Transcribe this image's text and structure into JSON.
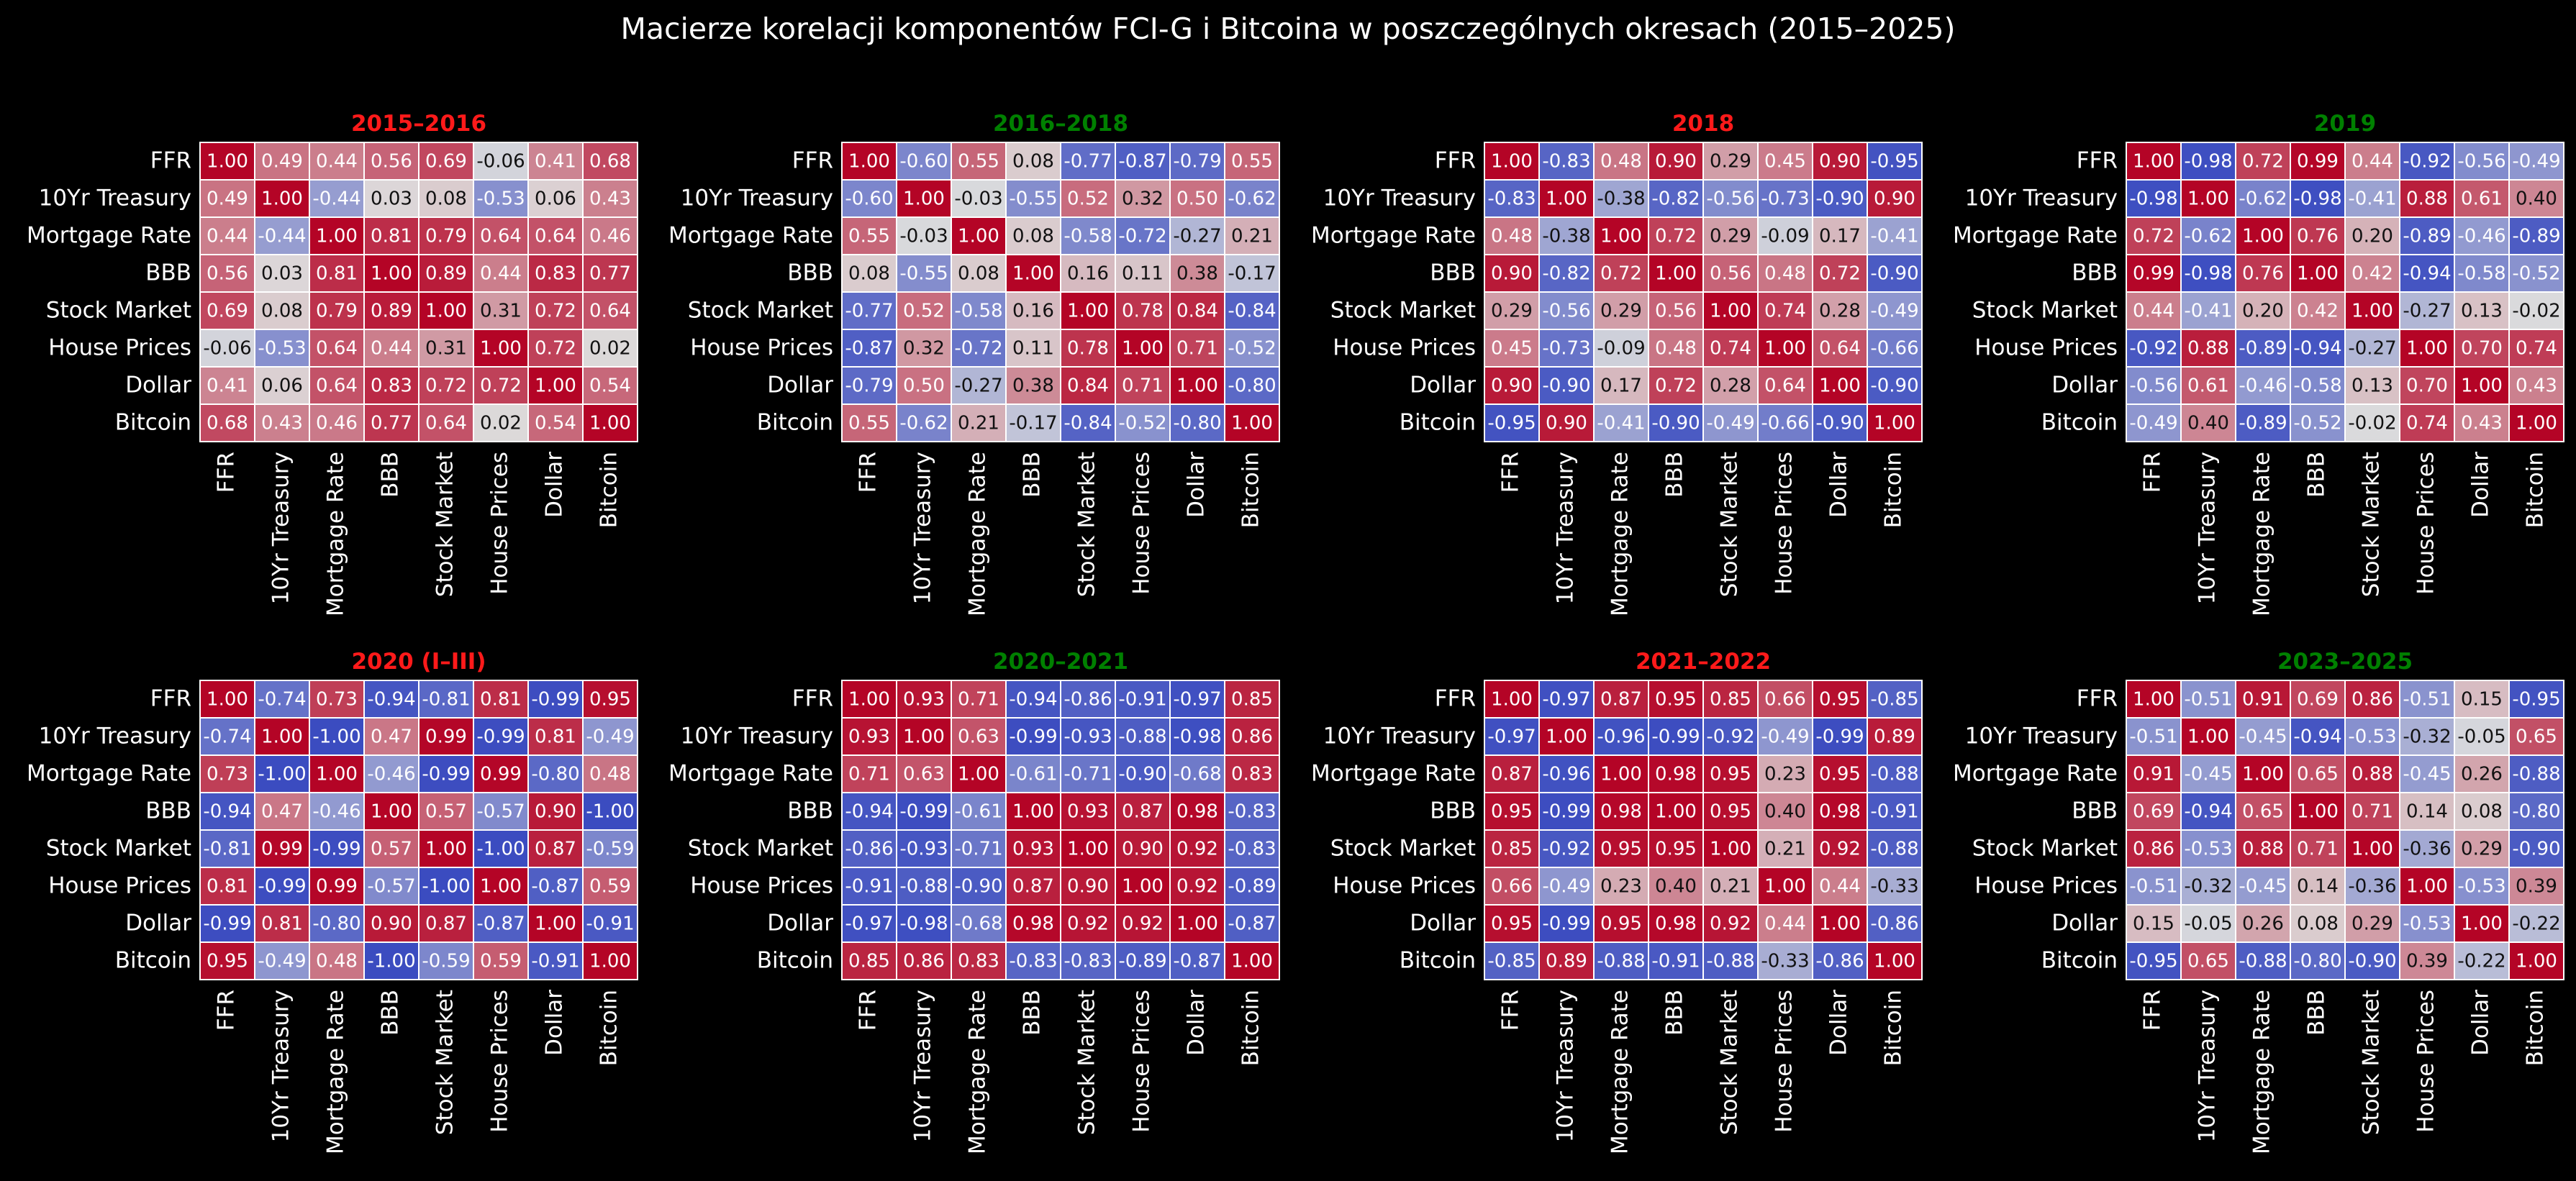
{
  "page": {
    "suptitle": "Macierze korelacji komponentów FCI-G i Bitcoina w poszczególnych okresach (2015–2025)"
  },
  "colors": {
    "background": "#000000",
    "title_red": "#ff1a1a",
    "title_green": "#008000",
    "cmap_low": "#3b4cc0",
    "cmap_mid": "#dddddd",
    "cmap_high": "#b40426",
    "cell_border": "#ffffff"
  },
  "variables": [
    "FFR",
    "10Yr Treasury",
    "Mortgage Rate",
    "BBB",
    "Stock Market",
    "House Prices",
    "Dollar",
    "Bitcoin"
  ],
  "chart_data": [
    {
      "type": "heatmap",
      "title": "2015–2016",
      "title_color": "red",
      "vmin": -1,
      "vmax": 1,
      "colormap": "coolwarm",
      "matrix": [
        [
          "1.00",
          "0.49",
          "0.44",
          "0.56",
          "0.69",
          "-0.06",
          "0.41",
          "0.68"
        ],
        [
          "0.49",
          "1.00",
          "-0.44",
          "0.03",
          "0.08",
          "-0.53",
          "0.06",
          "0.43"
        ],
        [
          "0.44",
          "-0.44",
          "1.00",
          "0.81",
          "0.79",
          "0.64",
          "0.64",
          "0.46"
        ],
        [
          "0.56",
          "0.03",
          "0.81",
          "1.00",
          "0.89",
          "0.44",
          "0.83",
          "0.77"
        ],
        [
          "0.69",
          "0.08",
          "0.79",
          "0.89",
          "1.00",
          "0.31",
          "0.72",
          "0.64"
        ],
        [
          "-0.06",
          "-0.53",
          "0.64",
          "0.44",
          "0.31",
          "1.00",
          "0.72",
          "0.02"
        ],
        [
          "0.41",
          "0.06",
          "0.64",
          "0.83",
          "0.72",
          "0.72",
          "1.00",
          "0.54"
        ],
        [
          "0.68",
          "0.43",
          "0.46",
          "0.77",
          "0.64",
          "0.02",
          "0.54",
          "1.00"
        ]
      ]
    },
    {
      "type": "heatmap",
      "title": "2016–2018",
      "title_color": "green",
      "vmin": -1,
      "vmax": 1,
      "colormap": "coolwarm",
      "matrix": [
        [
          "1.00",
          "-0.60",
          "0.55",
          "0.08",
          "-0.77",
          "-0.87",
          "-0.79",
          "0.55"
        ],
        [
          "-0.60",
          "1.00",
          "-0.03",
          "-0.55",
          "0.52",
          "0.32",
          "0.50",
          "-0.62"
        ],
        [
          "0.55",
          "-0.03",
          "1.00",
          "0.08",
          "-0.58",
          "-0.72",
          "-0.27",
          "0.21"
        ],
        [
          "0.08",
          "-0.55",
          "0.08",
          "1.00",
          "0.16",
          "0.11",
          "0.38",
          "-0.17"
        ],
        [
          "-0.77",
          "0.52",
          "-0.58",
          "0.16",
          "1.00",
          "0.78",
          "0.84",
          "-0.84"
        ],
        [
          "-0.87",
          "0.32",
          "-0.72",
          "0.11",
          "0.78",
          "1.00",
          "0.71",
          "-0.52"
        ],
        [
          "-0.79",
          "0.50",
          "-0.27",
          "0.38",
          "0.84",
          "0.71",
          "1.00",
          "-0.80"
        ],
        [
          "0.55",
          "-0.62",
          "0.21",
          "-0.17",
          "-0.84",
          "-0.52",
          "-0.80",
          "1.00"
        ]
      ]
    },
    {
      "type": "heatmap",
      "title": "2018",
      "title_color": "red",
      "vmin": -1,
      "vmax": 1,
      "colormap": "coolwarm",
      "matrix": [
        [
          "1.00",
          "-0.83",
          "0.48",
          "0.90",
          "0.29",
          "0.45",
          "0.90",
          "-0.95"
        ],
        [
          "-0.83",
          "1.00",
          "-0.38",
          "-0.82",
          "-0.56",
          "-0.73",
          "-0.90",
          "0.90"
        ],
        [
          "0.48",
          "-0.38",
          "1.00",
          "0.72",
          "0.29",
          "-0.09",
          "0.17",
          "-0.41"
        ],
        [
          "0.90",
          "-0.82",
          "0.72",
          "1.00",
          "0.56",
          "0.48",
          "0.72",
          "-0.90"
        ],
        [
          "0.29",
          "-0.56",
          "0.29",
          "0.56",
          "1.00",
          "0.74",
          "0.28",
          "-0.49"
        ],
        [
          "0.45",
          "-0.73",
          "-0.09",
          "0.48",
          "0.74",
          "1.00",
          "0.64",
          "-0.66"
        ],
        [
          "0.90",
          "-0.90",
          "0.17",
          "0.72",
          "0.28",
          "0.64",
          "1.00",
          "-0.90"
        ],
        [
          "-0.95",
          "0.90",
          "-0.41",
          "-0.90",
          "-0.49",
          "-0.66",
          "-0.90",
          "1.00"
        ]
      ]
    },
    {
      "type": "heatmap",
      "title": "2019",
      "title_color": "green",
      "vmin": -1,
      "vmax": 1,
      "colormap": "coolwarm",
      "matrix": [
        [
          "1.00",
          "-0.98",
          "0.72",
          "0.99",
          "0.44",
          "-0.92",
          "-0.56",
          "-0.49"
        ],
        [
          "-0.98",
          "1.00",
          "-0.62",
          "-0.98",
          "-0.41",
          "0.88",
          "0.61",
          "0.40"
        ],
        [
          "0.72",
          "-0.62",
          "1.00",
          "0.76",
          "0.20",
          "-0.89",
          "-0.46",
          "-0.89"
        ],
        [
          "0.99",
          "-0.98",
          "0.76",
          "1.00",
          "0.42",
          "-0.94",
          "-0.58",
          "-0.52"
        ],
        [
          "0.44",
          "-0.41",
          "0.20",
          "0.42",
          "1.00",
          "-0.27",
          "0.13",
          "-0.02"
        ],
        [
          "-0.92",
          "0.88",
          "-0.89",
          "-0.94",
          "-0.27",
          "1.00",
          "0.70",
          "0.74"
        ],
        [
          "-0.56",
          "0.61",
          "-0.46",
          "-0.58",
          "0.13",
          "0.70",
          "1.00",
          "0.43"
        ],
        [
          "-0.49",
          "0.40",
          "-0.89",
          "-0.52",
          "-0.02",
          "0.74",
          "0.43",
          "1.00"
        ]
      ]
    },
    {
      "type": "heatmap",
      "title": "2020 (I–III)",
      "title_color": "red",
      "vmin": -1,
      "vmax": 1,
      "colormap": "coolwarm",
      "matrix": [
        [
          "1.00",
          "-0.74",
          "0.73",
          "-0.94",
          "-0.81",
          "0.81",
          "-0.99",
          "0.95"
        ],
        [
          "-0.74",
          "1.00",
          "-1.00",
          "0.47",
          "0.99",
          "-0.99",
          "0.81",
          "-0.49"
        ],
        [
          "0.73",
          "-1.00",
          "1.00",
          "-0.46",
          "-0.99",
          "0.99",
          "-0.80",
          "0.48"
        ],
        [
          "-0.94",
          "0.47",
          "-0.46",
          "1.00",
          "0.57",
          "-0.57",
          "0.90",
          "-1.00"
        ],
        [
          "-0.81",
          "0.99",
          "-0.99",
          "0.57",
          "1.00",
          "-1.00",
          "0.87",
          "-0.59"
        ],
        [
          "0.81",
          "-0.99",
          "0.99",
          "-0.57",
          "-1.00",
          "1.00",
          "-0.87",
          "0.59"
        ],
        [
          "-0.99",
          "0.81",
          "-0.80",
          "0.90",
          "0.87",
          "-0.87",
          "1.00",
          "-0.91"
        ],
        [
          "0.95",
          "-0.49",
          "0.48",
          "-1.00",
          "-0.59",
          "0.59",
          "-0.91",
          "1.00"
        ]
      ]
    },
    {
      "type": "heatmap",
      "title": "2020–2021",
      "title_color": "green",
      "vmin": -1,
      "vmax": 1,
      "colormap": "coolwarm",
      "matrix": [
        [
          "1.00",
          "0.93",
          "0.71",
          "-0.94",
          "-0.86",
          "-0.91",
          "-0.97",
          "0.85"
        ],
        [
          "0.93",
          "1.00",
          "0.63",
          "-0.99",
          "-0.93",
          "-0.88",
          "-0.98",
          "0.86"
        ],
        [
          "0.71",
          "0.63",
          "1.00",
          "-0.61",
          "-0.71",
          "-0.90",
          "-0.68",
          "0.83"
        ],
        [
          "-0.94",
          "-0.99",
          "-0.61",
          "1.00",
          "0.93",
          "0.87",
          "0.98",
          "-0.83"
        ],
        [
          "-0.86",
          "-0.93",
          "-0.71",
          "0.93",
          "1.00",
          "0.90",
          "0.92",
          "-0.83"
        ],
        [
          "-0.91",
          "-0.88",
          "-0.90",
          "0.87",
          "0.90",
          "1.00",
          "0.92",
          "-0.89"
        ],
        [
          "-0.97",
          "-0.98",
          "-0.68",
          "0.98",
          "0.92",
          "0.92",
          "1.00",
          "-0.87"
        ],
        [
          "0.85",
          "0.86",
          "0.83",
          "-0.83",
          "-0.83",
          "-0.89",
          "-0.87",
          "1.00"
        ]
      ]
    },
    {
      "type": "heatmap",
      "title": "2021–2022",
      "title_color": "red",
      "vmin": -1,
      "vmax": 1,
      "colormap": "coolwarm",
      "matrix": [
        [
          "1.00",
          "-0.97",
          "0.87",
          "0.95",
          "0.85",
          "0.66",
          "0.95",
          "-0.85"
        ],
        [
          "-0.97",
          "1.00",
          "-0.96",
          "-0.99",
          "-0.92",
          "-0.49",
          "-0.99",
          "0.89"
        ],
        [
          "0.87",
          "-0.96",
          "1.00",
          "0.98",
          "0.95",
          "0.23",
          "0.95",
          "-0.88"
        ],
        [
          "0.95",
          "-0.99",
          "0.98",
          "1.00",
          "0.95",
          "0.40",
          "0.98",
          "-0.91"
        ],
        [
          "0.85",
          "-0.92",
          "0.95",
          "0.95",
          "1.00",
          "0.21",
          "0.92",
          "-0.88"
        ],
        [
          "0.66",
          "-0.49",
          "0.23",
          "0.40",
          "0.21",
          "1.00",
          "0.44",
          "-0.33"
        ],
        [
          "0.95",
          "-0.99",
          "0.95",
          "0.98",
          "0.92",
          "0.44",
          "1.00",
          "-0.86"
        ],
        [
          "-0.85",
          "0.89",
          "-0.88",
          "-0.91",
          "-0.88",
          "-0.33",
          "-0.86",
          "1.00"
        ]
      ]
    },
    {
      "type": "heatmap",
      "title": "2023–2025",
      "title_color": "green",
      "vmin": -1,
      "vmax": 1,
      "colormap": "coolwarm",
      "matrix": [
        [
          "1.00",
          "-0.51",
          "0.91",
          "0.69",
          "0.86",
          "-0.51",
          "0.15",
          "-0.95"
        ],
        [
          "-0.51",
          "1.00",
          "-0.45",
          "-0.94",
          "-0.53",
          "-0.32",
          "-0.05",
          "0.65"
        ],
        [
          "0.91",
          "-0.45",
          "1.00",
          "0.65",
          "0.88",
          "-0.45",
          "0.26",
          "-0.88"
        ],
        [
          "0.69",
          "-0.94",
          "0.65",
          "1.00",
          "0.71",
          "0.14",
          "0.08",
          "-0.80"
        ],
        [
          "0.86",
          "-0.53",
          "0.88",
          "0.71",
          "1.00",
          "-0.36",
          "0.29",
          "-0.90"
        ],
        [
          "-0.51",
          "-0.32",
          "-0.45",
          "0.14",
          "-0.36",
          "1.00",
          "-0.53",
          "0.39"
        ],
        [
          "0.15",
          "-0.05",
          "0.26",
          "0.08",
          "0.29",
          "-0.53",
          "1.00",
          "-0.22"
        ],
        [
          "-0.95",
          "0.65",
          "-0.88",
          "-0.80",
          "-0.90",
          "0.39",
          "-0.22",
          "1.00"
        ]
      ]
    }
  ]
}
